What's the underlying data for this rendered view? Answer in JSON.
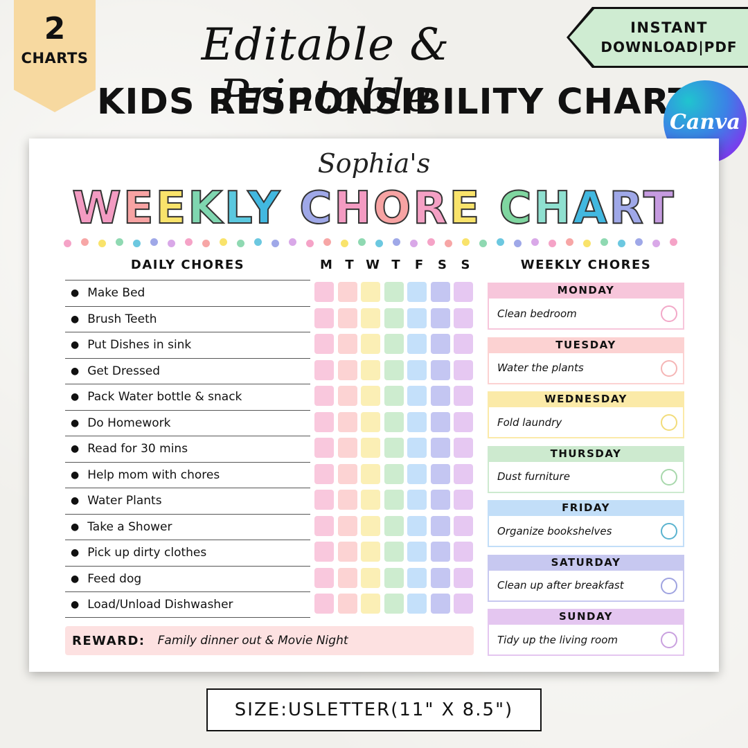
{
  "badge": {
    "number": "2",
    "label": "CHARTS"
  },
  "subtitle": "Editable & Printable",
  "title": "KIDS RESPONSIBILITY CHART",
  "instant_tag": {
    "line1": "INSTANT",
    "line2": "DOWNLOAD|PDF"
  },
  "canva_logo": "Canva",
  "card": {
    "owner": "Sophia's",
    "chart_title_letters": [
      {
        "ch": "W",
        "color": "#f39bc2"
      },
      {
        "ch": "E",
        "color": "#f7a3a3"
      },
      {
        "ch": "E",
        "color": "#f9e36b"
      },
      {
        "ch": "K",
        "color": "#7fd6b0"
      },
      {
        "ch": "L",
        "color": "#5bc8df"
      },
      {
        "ch": "Y",
        "color": "#42b8e0"
      },
      {
        "ch": " ",
        "color": "#ffffff"
      },
      {
        "ch": "C",
        "color": "#9fa8e8"
      },
      {
        "ch": "H",
        "color": "#f39bc2"
      },
      {
        "ch": "O",
        "color": "#f7a3a3"
      },
      {
        "ch": "R",
        "color": "#f4a0c4"
      },
      {
        "ch": "E",
        "color": "#f9e36b"
      },
      {
        "ch": " ",
        "color": "#ffffff"
      },
      {
        "ch": "C",
        "color": "#7fd6a0"
      },
      {
        "ch": "H",
        "color": "#8fe0d0"
      },
      {
        "ch": "A",
        "color": "#42b8e0"
      },
      {
        "ch": "R",
        "color": "#9fa8e8"
      },
      {
        "ch": "T",
        "color": "#c69be0"
      }
    ],
    "dot_colors": [
      "#f5a3c7",
      "#f7a6a6",
      "#f9e36b",
      "#8fd9b2",
      "#6cc8e0",
      "#9fa8e8",
      "#d9a8e8"
    ],
    "daily_header": "DAILY CHORES",
    "day_letters": [
      "M",
      "T",
      "W",
      "T",
      "F",
      "S",
      "S"
    ],
    "day_colors": [
      "#f9c8dd",
      "#fcd3d3",
      "#fbefb5",
      "#cdeccf",
      "#c4e0fa",
      "#c4c6f2",
      "#e6c8f2"
    ],
    "daily_chores": [
      "Make Bed",
      "Brush Teeth",
      "Put Dishes in sink",
      "Get Dressed",
      "Pack Water bottle & snack",
      "Do Homework",
      "Read for 30 mins",
      "Help mom with chores",
      "Water Plants",
      "Take a Shower",
      "Pick up dirty clothes",
      "Feed dog",
      "Load/Unload Dishwasher"
    ],
    "reward": {
      "label": "REWARD:",
      "value": "Family dinner out & Movie Night"
    },
    "weekly_header": "WEEKLY CHORES",
    "weekly_chores": [
      {
        "day": "MONDAY",
        "task": "Clean bedroom",
        "color": "#f7c6db",
        "border": "#f2a8c8"
      },
      {
        "day": "TUESDAY",
        "task": "Water the plants",
        "color": "#fcd2d2",
        "border": "#f5b5b5"
      },
      {
        "day": "WEDNESDAY",
        "task": "Fold laundry",
        "color": "#fbeaa8",
        "border": "#f2dc7a"
      },
      {
        "day": "THURSDAY",
        "task": "Dust furniture",
        "color": "#cdeacf",
        "border": "#a8d8ac"
      },
      {
        "day": "FRIDAY",
        "task": "Organize bookshelves",
        "color": "#c2def8",
        "border": "#5ab3cf"
      },
      {
        "day": "SATURDAY",
        "task": "Clean up after breakfast",
        "color": "#c7c8f0",
        "border": "#9fa3e0"
      },
      {
        "day": "SUNDAY",
        "task": "Tidy up the living room",
        "color": "#e4c6f0",
        "border": "#c9a0df"
      }
    ]
  },
  "size_label": "SIZE:USLETTER(11\" X 8.5\")"
}
